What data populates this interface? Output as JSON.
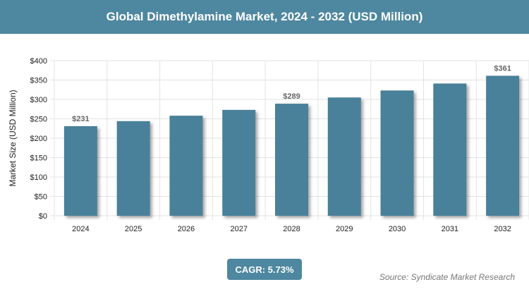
{
  "title": "Global Dimethylamine Market, 2024 - 2032 (USD Million)",
  "chart_data": {
    "type": "bar",
    "title": "Global Dimethylamine Market, 2024 - 2032 (USD Million)",
    "categories": [
      "2024",
      "2025",
      "2026",
      "2027",
      "2028",
      "2029",
      "2030",
      "2031",
      "2032"
    ],
    "values": [
      231,
      244,
      258,
      273,
      289,
      305,
      323,
      341,
      361
    ],
    "data_labels": {
      "0": "$231",
      "4": "$289",
      "8": "$361"
    },
    "ylabel": "Market Size (USD Million)",
    "xlabel": "",
    "ylim": [
      0,
      400
    ],
    "yticks": [
      "$0",
      "$50",
      "$100",
      "$150",
      "$200",
      "$250",
      "$300",
      "$350",
      "$400"
    ],
    "grid": true,
    "bar_color": "#4a809a"
  },
  "cagr_label": "CAGR: 5.73%",
  "source": "Source: Syndicate Market Research"
}
